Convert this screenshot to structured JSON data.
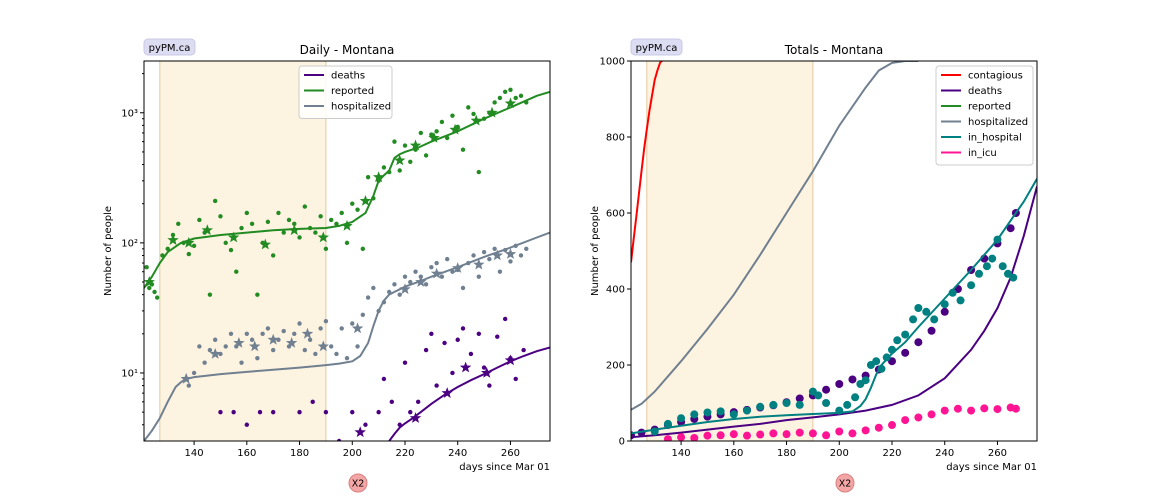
{
  "chart_data": [
    {
      "type": "line",
      "title": "Daily - Montana",
      "badge": "pyPM.ca",
      "xlabel": "days since Mar 01",
      "ylabel": "Number of people",
      "xlim": [
        121,
        275
      ],
      "ylim": [
        3,
        2500
      ],
      "yscale": "log",
      "grid": false,
      "legend": "top-center",
      "shaded_periods": [
        [
          127,
          190
        ]
      ],
      "vlines": [
        127,
        190
      ],
      "x_ticks": [
        140,
        160,
        180,
        200,
        220,
        240,
        260
      ],
      "y_ticks": [
        {
          "value": 10,
          "label": "10¹"
        },
        {
          "value": 100,
          "label": "10²"
        },
        {
          "value": 1000,
          "label": "10³"
        }
      ],
      "series": [
        {
          "name": "deaths",
          "color": "#4b0082",
          "model_x": [
            214,
            216,
            218,
            220,
            223,
            226,
            230,
            235,
            240,
            245,
            250,
            255,
            260,
            265,
            270,
            275
          ],
          "model_y": [
            3.0,
            3.4,
            3.8,
            4.1,
            4.5,
            5.0,
            5.8,
            6.8,
            7.8,
            8.8,
            9.8,
            11.0,
            12.3,
            13.5,
            14.7,
            15.7
          ],
          "daily_x": [
            150,
            155,
            160,
            165,
            170,
            180,
            185,
            190,
            195,
            200,
            205,
            210,
            212,
            215,
            218,
            220,
            222,
            225,
            228,
            230,
            232,
            235,
            238,
            240,
            242,
            245,
            248,
            250,
            252,
            255,
            258,
            260,
            262,
            265
          ],
          "daily_y": [
            5,
            5,
            4,
            5,
            5,
            5,
            6,
            5,
            3,
            5,
            4,
            5,
            9,
            6,
            4,
            12,
            5,
            6,
            15,
            20,
            8,
            17,
            10,
            18,
            22,
            14,
            20,
            11,
            8,
            19,
            26,
            13,
            9,
            15
          ],
          "avg_x": [
            203,
            224,
            236,
            243,
            251,
            260
          ],
          "avg_y": [
            3.5,
            4.5,
            7.0,
            11.0,
            10.0,
            12.5
          ]
        },
        {
          "name": "reported",
          "color": "#228b22",
          "model_x": [
            121,
            124,
            127,
            130,
            135,
            140,
            150,
            160,
            170,
            180,
            190,
            195,
            200,
            205,
            208,
            210,
            212,
            214,
            216,
            218,
            220,
            225,
            230,
            240,
            250,
            260,
            270,
            275
          ],
          "model_y": [
            45,
            55,
            70,
            85,
            100,
            108,
            115,
            120,
            125,
            128,
            130,
            135,
            145,
            170,
            230,
            300,
            330,
            360,
            450,
            480,
            500,
            540,
            600,
            720,
            900,
            1100,
            1350,
            1450
          ],
          "daily_x": [
            122,
            123,
            124,
            125,
            126,
            128,
            130,
            132,
            134,
            136,
            138,
            140,
            142,
            144,
            146,
            148,
            150,
            152,
            154,
            156,
            158,
            160,
            162,
            164,
            166,
            168,
            170,
            172,
            174,
            176,
            178,
            180,
            182,
            184,
            186,
            188,
            190,
            192,
            194,
            196,
            198,
            200,
            202,
            204,
            206,
            208,
            210,
            212,
            214,
            216,
            218,
            220,
            222,
            224,
            226,
            228,
            230,
            232,
            234,
            236,
            238,
            240,
            242,
            244,
            246,
            248,
            250,
            252,
            254,
            256,
            258,
            260,
            262,
            264,
            266
          ],
          "daily_y": [
            65,
            45,
            48,
            42,
            38,
            80,
            90,
            115,
            140,
            100,
            82,
            95,
            150,
            120,
            40,
            210,
            160,
            100,
            88,
            60,
            130,
            170,
            140,
            40,
            100,
            145,
            80,
            170,
            120,
            150,
            140,
            110,
            190,
            130,
            120,
            160,
            90,
            150,
            140,
            170,
            100,
            200,
            180,
            90,
            320,
            220,
            300,
            380,
            350,
            600,
            360,
            560,
            420,
            520,
            700,
            470,
            680,
            720,
            850,
            640,
            950,
            780,
            520,
            1100,
            980,
            350,
            900,
            1000,
            1200,
            1300,
            1450,
            1500,
            1300,
            1350,
            1200
          ],
          "avg_x": [
            123,
            132,
            138,
            145,
            155,
            167,
            178,
            189,
            198,
            205,
            210,
            218,
            224,
            231,
            239,
            247,
            253,
            260
          ],
          "avg_y": [
            50,
            105,
            100,
            125,
            110,
            97,
            125,
            110,
            135,
            210,
            320,
            430,
            560,
            640,
            740,
            870,
            1000,
            1180
          ]
        },
        {
          "name": "hospitalized",
          "color": "#708090",
          "model_x": [
            121,
            124,
            127,
            130,
            133,
            135,
            137,
            140,
            150,
            160,
            170,
            180,
            190,
            195,
            200,
            203,
            206,
            208,
            210,
            212,
            214,
            216,
            218,
            220,
            225,
            230,
            240,
            250,
            260,
            270,
            275
          ],
          "model_y": [
            3,
            3.6,
            4.5,
            6,
            7.8,
            8.5,
            9,
            9.3,
            9.8,
            10.2,
            10.6,
            11.0,
            11.5,
            11.8,
            12.3,
            13.5,
            17,
            23,
            30,
            36,
            40,
            42,
            44,
            46,
            50,
            55,
            65,
            78,
            92,
            110,
            120
          ],
          "daily_x": [
            138,
            140,
            142,
            144,
            146,
            148,
            150,
            152,
            154,
            156,
            158,
            160,
            162,
            164,
            166,
            168,
            170,
            172,
            174,
            176,
            178,
            180,
            182,
            184,
            186,
            188,
            190,
            192,
            194,
            196,
            198,
            200,
            202,
            204,
            206,
            208,
            210,
            212,
            214,
            216,
            218,
            220,
            222,
            224,
            226,
            228,
            230,
            232,
            234,
            236,
            238,
            240,
            242,
            244,
            246,
            248,
            250,
            252,
            254,
            256,
            258,
            260,
            262,
            264,
            266
          ],
          "daily_y": [
            8,
            10,
            16,
            12,
            15,
            18,
            14,
            16,
            20,
            16,
            12,
            20,
            18,
            13,
            20,
            22,
            15,
            18,
            21,
            16,
            20,
            24,
            15,
            18,
            14,
            22,
            25,
            16,
            14,
            22,
            13,
            24,
            16,
            28,
            38,
            45,
            30,
            35,
            42,
            48,
            40,
            55,
            50,
            60,
            55,
            48,
            65,
            70,
            55,
            75,
            60,
            62,
            45,
            70,
            80,
            55,
            85,
            75,
            90,
            60,
            88,
            72,
            95,
            80,
            90
          ],
          "avg_x": [
            137,
            148,
            157,
            163,
            170,
            177,
            183,
            189,
            202,
            220,
            226,
            232,
            240,
            248,
            255,
            260
          ],
          "avg_y": [
            9,
            14,
            17,
            16,
            18,
            17,
            20,
            16,
            22,
            44,
            50,
            58,
            64,
            68,
            80,
            82
          ]
        }
      ],
      "button_label": "X2"
    },
    {
      "type": "line",
      "title": "Totals - Montana",
      "badge": "pyPM.ca",
      "xlabel": "days since Mar 01",
      "ylabel": "Number of people",
      "xlim": [
        121,
        275
      ],
      "ylim": [
        0,
        1000
      ],
      "yscale": "linear",
      "grid": false,
      "legend": "top-right",
      "shaded_periods": [
        [
          127,
          190
        ]
      ],
      "vlines": [
        127,
        190
      ],
      "x_ticks": [
        140,
        160,
        180,
        200,
        220,
        240,
        260
      ],
      "y_ticks": [
        {
          "value": 0,
          "label": "0"
        },
        {
          "value": 200,
          "label": "200"
        },
        {
          "value": 400,
          "label": "400"
        },
        {
          "value": 600,
          "label": "600"
        },
        {
          "value": 800,
          "label": "800"
        },
        {
          "value": 1000,
          "label": "1000"
        }
      ],
      "series": [
        {
          "name": "contagious",
          "color": "#ff0000",
          "model_x": [
            121,
            122,
            123,
            124,
            125,
            126,
            127,
            128,
            129,
            130,
            131,
            132,
            132.5,
            133
          ],
          "model_y": [
            470,
            530,
            590,
            650,
            710,
            770,
            820,
            870,
            910,
            950,
            975,
            995,
            1000,
            1000
          ]
        },
        {
          "name": "deaths",
          "color": "#4b0082",
          "model_x": [
            121,
            130,
            140,
            150,
            160,
            170,
            180,
            190,
            200,
            210,
            220,
            230,
            240,
            250,
            255,
            260,
            265,
            270,
            275
          ],
          "model_y": [
            10,
            15,
            22,
            30,
            38,
            45,
            55,
            62,
            70,
            80,
            95,
            120,
            165,
            240,
            290,
            350,
            430,
            540,
            670
          ],
          "data_x": [
            121,
            125,
            130,
            135,
            140,
            145,
            150,
            155,
            160,
            165,
            170,
            175,
            180,
            185,
            190,
            195,
            200,
            205,
            210,
            215,
            220,
            225,
            230,
            235,
            240,
            245,
            250,
            255,
            260,
            265,
            267
          ],
          "data_y": [
            15,
            22,
            30,
            42,
            50,
            58,
            64,
            70,
            76,
            82,
            88,
            94,
            102,
            112,
            120,
            135,
            150,
            162,
            172,
            188,
            210,
            232,
            260,
            290,
            340,
            400,
            450,
            480,
            520,
            560,
            600
          ]
        },
        {
          "name": "reported",
          "color": "#228b22",
          "model_x": [],
          "model_y": []
        },
        {
          "name": "hospitalized",
          "color": "#708090",
          "model_x": [
            121,
            125,
            130,
            140,
            150,
            160,
            170,
            180,
            190,
            200,
            210,
            215,
            220,
            225,
            228,
            230
          ],
          "model_y": [
            82,
            98,
            130,
            210,
            295,
            385,
            490,
            600,
            710,
            830,
            930,
            975,
            995,
            1000,
            1000,
            1000
          ]
        },
        {
          "name": "in_hospital",
          "color": "#008080",
          "model_x": [
            121,
            130,
            140,
            150,
            160,
            170,
            180,
            190,
            200,
            205,
            208,
            210,
            212,
            214,
            216,
            218,
            220,
            225,
            230,
            240,
            250,
            260,
            270,
            275
          ],
          "model_y": [
            20,
            30,
            40,
            50,
            58,
            64,
            68,
            71,
            74,
            78,
            92,
            110,
            140,
            175,
            200,
            215,
            230,
            260,
            300,
            375,
            450,
            530,
            630,
            690
          ],
          "data_x": [
            130,
            135,
            140,
            145,
            150,
            155,
            160,
            165,
            170,
            175,
            180,
            185,
            190,
            192,
            195,
            200,
            203,
            206,
            208,
            210,
            212,
            214,
            216,
            218,
            220,
            222,
            225,
            228,
            230,
            233,
            236,
            240,
            243,
            246,
            250,
            253,
            256,
            258,
            260,
            262,
            264,
            266
          ],
          "data_y": [
            25,
            45,
            60,
            70,
            75,
            78,
            70,
            80,
            90,
            95,
            100,
            95,
            130,
            120,
            100,
            80,
            95,
            115,
            150,
            160,
            200,
            210,
            190,
            220,
            240,
            265,
            280,
            320,
            350,
            340,
            320,
            360,
            390,
            370,
            410,
            440,
            460,
            480,
            530,
            460,
            440,
            430
          ]
        },
        {
          "name": "in_icu",
          "color": "#ff1493",
          "data_x": [
            135,
            140,
            145,
            150,
            155,
            160,
            165,
            170,
            175,
            180,
            185,
            190,
            195,
            200,
            205,
            210,
            215,
            220,
            225,
            230,
            235,
            240,
            245,
            250,
            255,
            260,
            265,
            267
          ],
          "data_y": [
            5,
            10,
            8,
            14,
            15,
            18,
            14,
            17,
            20,
            18,
            22,
            20,
            15,
            25,
            20,
            28,
            35,
            42,
            55,
            62,
            70,
            80,
            85,
            80,
            86,
            84,
            88,
            85
          ]
        }
      ],
      "button_label": "X2"
    }
  ]
}
